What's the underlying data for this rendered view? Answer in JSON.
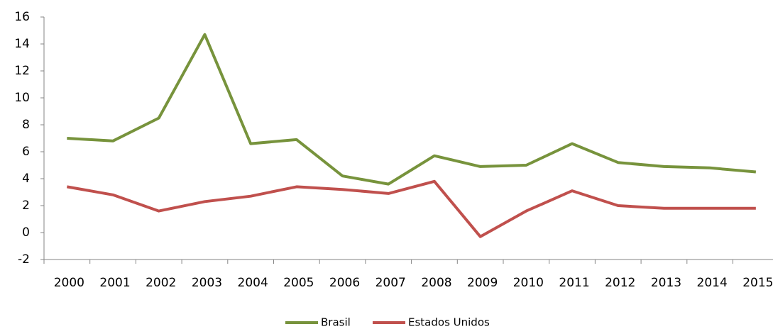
{
  "chart_data": {
    "type": "line",
    "categories": [
      "2000",
      "2001",
      "2002",
      "2003",
      "2004",
      "2005",
      "2006",
      "2007",
      "2008",
      "2009",
      "2010",
      "2011",
      "2012",
      "2013",
      "2014",
      "2015"
    ],
    "series": [
      {
        "name": "Brasil",
        "color": "#77933c",
        "values": [
          7.0,
          6.8,
          8.5,
          14.7,
          6.6,
          6.9,
          4.2,
          3.6,
          5.7,
          4.9,
          5.0,
          6.6,
          5.2,
          4.9,
          4.8,
          4.5
        ]
      },
      {
        "name": "Estados Unidos",
        "color": "#c0504d",
        "values": [
          3.4,
          2.8,
          1.6,
          2.3,
          2.7,
          3.4,
          3.2,
          2.9,
          3.8,
          -0.3,
          1.6,
          3.1,
          2.0,
          1.8,
          1.8,
          1.8
        ]
      }
    ],
    "ylim": [
      -2,
      16
    ],
    "yticks": [
      -2,
      0,
      2,
      4,
      6,
      8,
      10,
      12,
      14,
      16
    ],
    "grid": false,
    "legend": "bottom"
  }
}
